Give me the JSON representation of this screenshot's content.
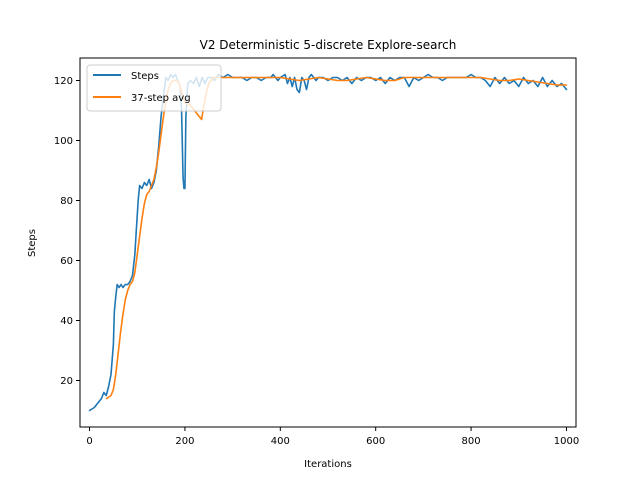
{
  "chart_data": {
    "type": "line",
    "title": "V2 Deterministic 5-discrete Explore-search",
    "xlabel": "Iterations",
    "ylabel": "Steps",
    "xlim": [
      -20,
      1020
    ],
    "ylim": [
      4.5,
      127.5
    ],
    "xticks": [
      0,
      200,
      400,
      600,
      800,
      1000
    ],
    "yticks": [
      20,
      40,
      60,
      80,
      100,
      120
    ],
    "grid": false,
    "legend_position": "top-left",
    "series": [
      {
        "name": "Steps",
        "color": "#1f77b4",
        "points": [
          [
            0,
            10
          ],
          [
            10,
            11
          ],
          [
            15,
            12
          ],
          [
            20,
            13
          ],
          [
            25,
            14
          ],
          [
            30,
            16
          ],
          [
            35,
            15
          ],
          [
            40,
            18
          ],
          [
            45,
            22
          ],
          [
            50,
            32
          ],
          [
            52,
            43
          ],
          [
            55,
            48
          ],
          [
            58,
            52
          ],
          [
            62,
            51
          ],
          [
            66,
            52
          ],
          [
            70,
            51
          ],
          [
            75,
            52
          ],
          [
            80,
            52
          ],
          [
            85,
            53
          ],
          [
            90,
            55
          ],
          [
            95,
            62
          ],
          [
            98,
            70
          ],
          [
            102,
            80
          ],
          [
            105,
            85
          ],
          [
            110,
            84
          ],
          [
            115,
            86
          ],
          [
            120,
            85
          ],
          [
            125,
            87
          ],
          [
            130,
            84
          ],
          [
            135,
            86
          ],
          [
            140,
            90
          ],
          [
            145,
            98
          ],
          [
            150,
            108
          ],
          [
            155,
            115
          ],
          [
            160,
            121
          ],
          [
            165,
            120
          ],
          [
            170,
            122
          ],
          [
            175,
            121
          ],
          [
            180,
            122
          ],
          [
            185,
            120
          ],
          [
            190,
            118
          ],
          [
            193,
            110
          ],
          [
            196,
            88
          ],
          [
            198,
            84
          ],
          [
            200,
            84
          ],
          [
            202,
            108
          ],
          [
            206,
            119
          ],
          [
            212,
            120
          ],
          [
            218,
            119
          ],
          [
            224,
            121
          ],
          [
            230,
            118
          ],
          [
            236,
            121
          ],
          [
            242,
            119
          ],
          [
            248,
            121
          ],
          [
            255,
            121
          ],
          [
            262,
            120
          ],
          [
            270,
            122
          ],
          [
            280,
            121
          ],
          [
            290,
            122
          ],
          [
            300,
            121
          ],
          [
            310,
            121
          ],
          [
            320,
            121
          ],
          [
            330,
            120
          ],
          [
            340,
            121
          ],
          [
            350,
            121
          ],
          [
            360,
            120
          ],
          [
            370,
            121
          ],
          [
            380,
            121
          ],
          [
            385,
            122
          ],
          [
            390,
            121
          ],
          [
            395,
            120
          ],
          [
            400,
            121
          ],
          [
            410,
            122
          ],
          [
            415,
            119
          ],
          [
            420,
            121
          ],
          [
            425,
            118
          ],
          [
            430,
            121
          ],
          [
            435,
            117
          ],
          [
            440,
            116
          ],
          [
            445,
            121
          ],
          [
            450,
            120
          ],
          [
            455,
            117
          ],
          [
            460,
            121
          ],
          [
            465,
            122
          ],
          [
            470,
            121
          ],
          [
            475,
            120
          ],
          [
            480,
            121
          ],
          [
            490,
            121
          ],
          [
            500,
            120
          ],
          [
            510,
            121
          ],
          [
            520,
            121
          ],
          [
            530,
            120
          ],
          [
            540,
            121
          ],
          [
            550,
            119
          ],
          [
            560,
            121
          ],
          [
            570,
            120
          ],
          [
            580,
            121
          ],
          [
            590,
            121
          ],
          [
            600,
            120
          ],
          [
            610,
            121
          ],
          [
            620,
            119
          ],
          [
            630,
            121
          ],
          [
            640,
            120
          ],
          [
            650,
            121
          ],
          [
            660,
            121
          ],
          [
            670,
            118
          ],
          [
            680,
            121
          ],
          [
            690,
            120
          ],
          [
            700,
            121
          ],
          [
            710,
            122
          ],
          [
            720,
            121
          ],
          [
            730,
            121
          ],
          [
            740,
            120
          ],
          [
            750,
            121
          ],
          [
            760,
            121
          ],
          [
            770,
            121
          ],
          [
            780,
            121
          ],
          [
            790,
            121
          ],
          [
            800,
            122
          ],
          [
            810,
            121
          ],
          [
            820,
            121
          ],
          [
            830,
            120
          ],
          [
            840,
            118
          ],
          [
            850,
            121
          ],
          [
            860,
            119
          ],
          [
            870,
            121
          ],
          [
            880,
            119
          ],
          [
            890,
            120
          ],
          [
            900,
            118
          ],
          [
            910,
            121
          ],
          [
            920,
            119
          ],
          [
            930,
            120
          ],
          [
            940,
            118
          ],
          [
            950,
            121
          ],
          [
            960,
            118
          ],
          [
            970,
            120
          ],
          [
            980,
            118
          ],
          [
            990,
            119
          ],
          [
            1000,
            117
          ]
        ]
      },
      {
        "name": "37-step avg",
        "color": "#ff7f0e",
        "points": [
          [
            36,
            14
          ],
          [
            45,
            15
          ],
          [
            50,
            17
          ],
          [
            55,
            22
          ],
          [
            60,
            29
          ],
          [
            65,
            36
          ],
          [
            70,
            42
          ],
          [
            75,
            47
          ],
          [
            80,
            50
          ],
          [
            85,
            52
          ],
          [
            90,
            53
          ],
          [
            95,
            56
          ],
          [
            100,
            62
          ],
          [
            105,
            68
          ],
          [
            110,
            74
          ],
          [
            115,
            79
          ],
          [
            120,
            82
          ],
          [
            125,
            83
          ],
          [
            130,
            85
          ],
          [
            135,
            87
          ],
          [
            140,
            91
          ],
          [
            145,
            96
          ],
          [
            150,
            102
          ],
          [
            155,
            108
          ],
          [
            160,
            113
          ],
          [
            165,
            117
          ],
          [
            170,
            119
          ],
          [
            175,
            120
          ],
          [
            180,
            120
          ],
          [
            185,
            120
          ],
          [
            190,
            118
          ],
          [
            195,
            115
          ],
          [
            200,
            113
          ],
          [
            205,
            112
          ],
          [
            210,
            112
          ],
          [
            215,
            111
          ],
          [
            220,
            110
          ],
          [
            225,
            109
          ],
          [
            230,
            108
          ],
          [
            235,
            107
          ],
          [
            240,
            112
          ],
          [
            245,
            116
          ],
          [
            250,
            119
          ],
          [
            255,
            120
          ],
          [
            260,
            121
          ],
          [
            270,
            121
          ],
          [
            280,
            121
          ],
          [
            300,
            121
          ],
          [
            320,
            121
          ],
          [
            340,
            121
          ],
          [
            360,
            121
          ],
          [
            380,
            121
          ],
          [
            400,
            121
          ],
          [
            420,
            120.5
          ],
          [
            440,
            120
          ],
          [
            460,
            120.5
          ],
          [
            480,
            121
          ],
          [
            500,
            120.5
          ],
          [
            520,
            120
          ],
          [
            540,
            120
          ],
          [
            560,
            120.5
          ],
          [
            580,
            121
          ],
          [
            600,
            120.5
          ],
          [
            620,
            120
          ],
          [
            640,
            120
          ],
          [
            660,
            121
          ],
          [
            680,
            121
          ],
          [
            700,
            121
          ],
          [
            720,
            121
          ],
          [
            740,
            121
          ],
          [
            760,
            121
          ],
          [
            780,
            121
          ],
          [
            800,
            121
          ],
          [
            820,
            121
          ],
          [
            840,
            120.5
          ],
          [
            860,
            120
          ],
          [
            880,
            120
          ],
          [
            900,
            120.5
          ],
          [
            920,
            120
          ],
          [
            940,
            119.5
          ],
          [
            960,
            119
          ],
          [
            980,
            118.5
          ],
          [
            1000,
            118.5
          ]
        ]
      }
    ]
  }
}
